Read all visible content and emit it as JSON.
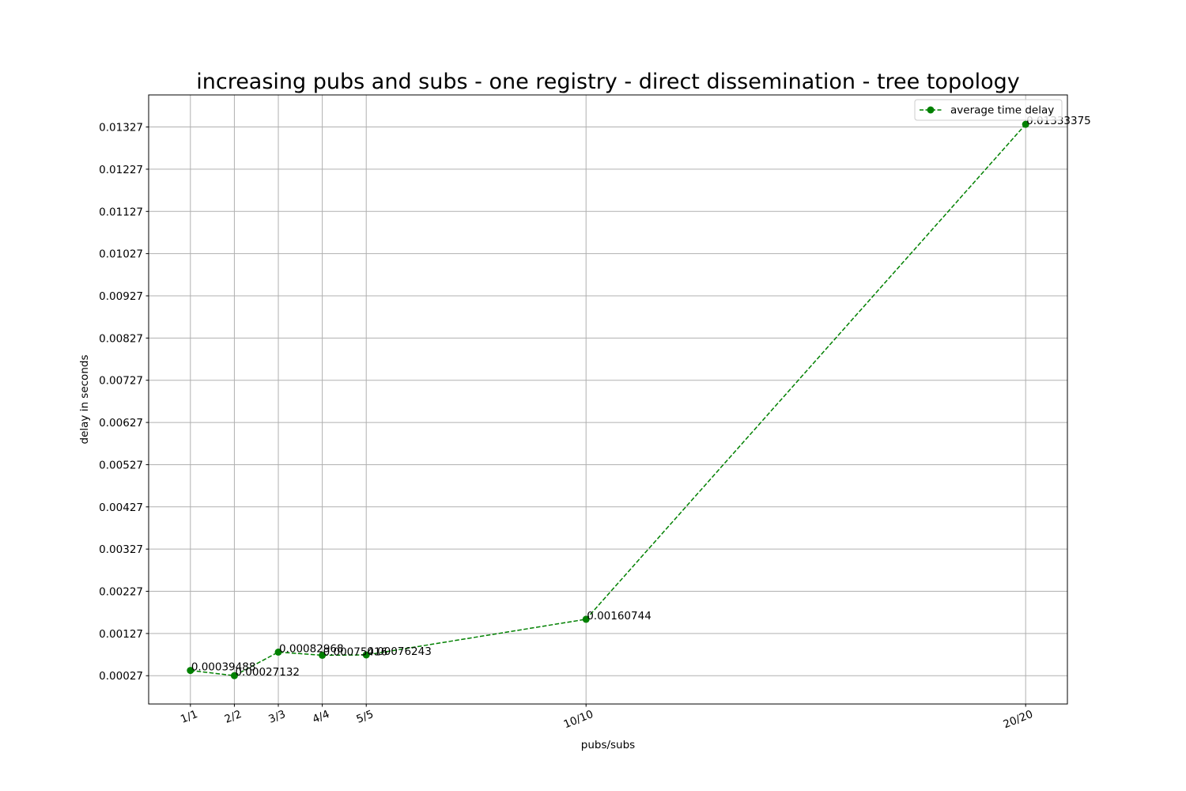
{
  "chart_data": {
    "type": "line",
    "title": "increasing pubs and subs - one registry - direct dissemination - tree topology",
    "xlabel": "pubs/subs",
    "ylabel": "delay in seconds",
    "categories": [
      "1/1",
      "2/2",
      "3/3",
      "4/4",
      "5/5",
      "10/10",
      "20/20"
    ],
    "x": [
      1,
      2,
      3,
      4,
      5,
      10,
      20
    ],
    "yticks": [
      "0.00027",
      "0.00127",
      "0.00227",
      "0.00327",
      "0.00427",
      "0.00527",
      "0.00627",
      "0.00727",
      "0.00827",
      "0.00927",
      "0.01027",
      "0.01127",
      "0.01227",
      "0.01327"
    ],
    "ytick_values": [
      0.00027,
      0.00127,
      0.00227,
      0.00327,
      0.00427,
      0.00527,
      0.00627,
      0.00727,
      0.00827,
      0.00927,
      0.01027,
      0.01127,
      0.01227,
      0.01327
    ],
    "xlim": [
      0.05,
      20.95
    ],
    "ylim": [
      -0.0004,
      0.01403
    ],
    "series": [
      {
        "name": "average time delay",
        "color": "#008000",
        "line_style": "dashed",
        "marker": "circle",
        "values": [
          0.00039488,
          0.00027132,
          0.00082968,
          0.00075416,
          0.00076243,
          0.00160744,
          0.01333375
        ],
        "labels": [
          "0.00039488",
          "0.00027132",
          "0.00082968",
          "0.00075416",
          "0.00076243",
          "0.00160744",
          "0.01333375"
        ]
      }
    ],
    "grid": true,
    "legend_position": "upper right",
    "xtick_rotation": "rotated"
  }
}
